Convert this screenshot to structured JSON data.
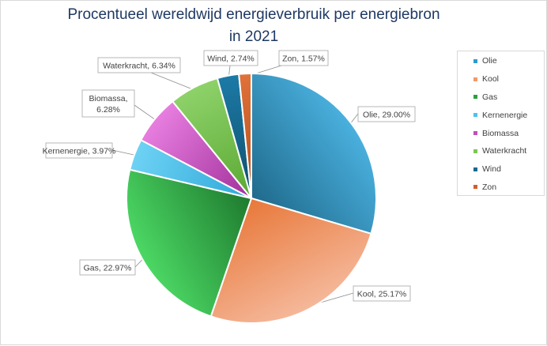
{
  "chart_data": {
    "type": "pie",
    "title": "Procentueel wereldwijd energieverbruik per energiebron",
    "subtitle": "in 2021",
    "legend_position": "right",
    "slices": [
      {
        "name": "Olie",
        "value": 29.0,
        "label": "Olie, 29.00%",
        "color_dark": "#1f6a8c",
        "color_light": "#4ab0de"
      },
      {
        "name": "Kool",
        "value": 25.17,
        "label": "Kool, 25.17%",
        "color_dark": "#e8783a",
        "color_light": "#f5b89a"
      },
      {
        "name": "Gas",
        "value": 22.97,
        "label": "Gas, 22.97%",
        "color_dark": "#1e7a2e",
        "color_light": "#4cd864"
      },
      {
        "name": "Kernenergie",
        "value": 3.97,
        "label": "Kernenergie, 3.97%",
        "color_dark": "#2ea8d8",
        "color_light": "#6ed2f4"
      },
      {
        "name": "Biomassa",
        "value": 6.28,
        "label": "Biomassa,\n6.28%",
        "color_dark": "#a0309a",
        "color_light": "#e87ee0"
      },
      {
        "name": "Waterkracht",
        "value": 6.34,
        "label": "Waterkracht, 6.34%",
        "color_dark": "#5aa832",
        "color_light": "#8ed26a"
      },
      {
        "name": "Wind",
        "value": 2.74,
        "label": "Wind, 2.74%",
        "color_dark": "#0f4f6e",
        "color_light": "#1c7aa6"
      },
      {
        "name": "Zon",
        "value": 1.57,
        "label": "Zon, 1.57%",
        "color_dark": "#b24e1a",
        "color_light": "#e0723a"
      }
    ]
  },
  "legend_items": [
    "Olie",
    "Kool",
    "Gas",
    "Kernenergie",
    "Biomassa",
    "Waterkracht",
    "Wind",
    "Zon"
  ],
  "legend_colors": [
    "#2e9bcc",
    "#f09a6a",
    "#2e9e40",
    "#4ac3ee",
    "#c050b8",
    "#7ac850",
    "#1a6890",
    "#d06028"
  ]
}
